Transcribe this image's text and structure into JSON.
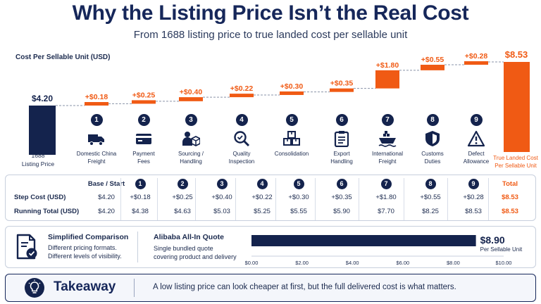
{
  "title": "Why the Listing Price Isn’t the Real Cost",
  "subtitle": "From 1688 listing price to true landed cost per sellable unit",
  "colors": {
    "navy": "#14234d",
    "orange": "#f05a14"
  },
  "chart_data": {
    "type": "bar",
    "subtype": "waterfall",
    "ylabel": "Cost Per Sellable Unit (USD)",
    "base": {
      "label": "1688 Listing Price",
      "value": 4.2,
      "value_label": "$4.20"
    },
    "steps": [
      {
        "num": "1",
        "label": "Domestic China Freight",
        "value": 0.18,
        "value_label": "+$0.18",
        "icon": "truck-icon"
      },
      {
        "num": "2",
        "label": "Payment Fees",
        "value": 0.25,
        "value_label": "+$0.25",
        "icon": "credit-card-icon"
      },
      {
        "num": "3",
        "label": "Sourcing / Handling",
        "value": 0.4,
        "value_label": "+$0.40",
        "icon": "person-box-icon"
      },
      {
        "num": "4",
        "label": "Quality Inspection",
        "value": 0.22,
        "value_label": "+$0.22",
        "icon": "magnifier-check-icon"
      },
      {
        "num": "5",
        "label": "Consolidation",
        "value": 0.3,
        "value_label": "+$0.30",
        "icon": "stacked-boxes-icon"
      },
      {
        "num": "6",
        "label": "Export Handling",
        "value": 0.35,
        "value_label": "+$0.35",
        "icon": "clipboard-icon"
      },
      {
        "num": "7",
        "label": "International Freight",
        "value": 1.8,
        "value_label": "+$1.80",
        "icon": "ship-icon"
      },
      {
        "num": "8",
        "label": "Customs Duties",
        "value": 0.55,
        "value_label": "+$0.55",
        "icon": "shield-icon"
      },
      {
        "num": "9",
        "label": "Defect Allowance",
        "value": 0.28,
        "value_label": "+$0.28",
        "icon": "warning-icon"
      }
    ],
    "total": {
      "label": "True Landed Cost Per Sellable Unit",
      "value": 8.53,
      "value_label": "$8.53"
    }
  },
  "table": {
    "base_header": "Base / Start",
    "total_header": "Total",
    "step_nums": [
      "1",
      "2",
      "3",
      "4",
      "5",
      "6",
      "7",
      "8",
      "9"
    ],
    "rows": [
      {
        "label": "Step Cost (USD)",
        "values": [
          "$4.20",
          "+$0.18",
          "+$0.25",
          "+$0.40",
          "+$0.22",
          "+$0.30",
          "+$0.35",
          "+$1.80",
          "+$0.55",
          "+$0.28",
          "$8.53"
        ]
      },
      {
        "label": "Running Total (USD)",
        "values": [
          "$4.20",
          "$4.38",
          "$4.63",
          "$5.03",
          "$5.25",
          "$5.55",
          "$5.90",
          "$7.70",
          "$8.25",
          "$8.53",
          "$8.53"
        ]
      }
    ]
  },
  "comparison": {
    "title": "Simplified Comparison",
    "line1": "Different pricing formats.",
    "line2": "Different levels of visibility.",
    "quote_title": "Alibaba All-In Quote",
    "quote_line1": "Single bundled quote",
    "quote_line2": "covering product and delivery",
    "quote_value": 8.9,
    "quote_value_label": "$8.90",
    "quote_unit": "Per Sellable Unit",
    "axis_ticks": [
      "$0.00",
      "$2.00",
      "$4.00",
      "$6.00",
      "$8.00",
      "$10.00"
    ],
    "axis_max": 10
  },
  "takeaway": {
    "title": "Takeaway",
    "text": "A low listing price can look cheaper at first, but the full delivered cost is what matters."
  }
}
